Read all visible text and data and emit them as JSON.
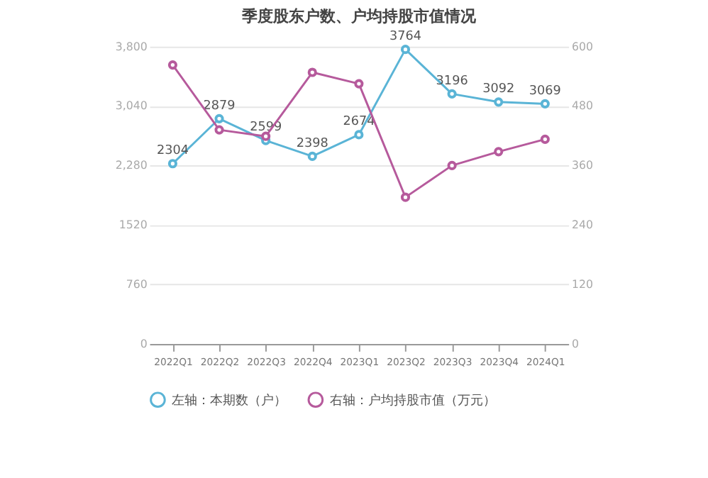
{
  "chart_data": {
    "type": "line",
    "title": "季度股东户数、户均持股市值情况",
    "categories": [
      "2022Q1",
      "2022Q2",
      "2022Q3",
      "2022Q4",
      "2023Q1",
      "2023Q2",
      "2023Q3",
      "2023Q4",
      "2024Q1"
    ],
    "series": [
      {
        "name": "左轴：本期数（户）",
        "color": "#5ab4d6",
        "values": [
          2304,
          2879,
          2599,
          2398,
          2674,
          3764,
          3196,
          3092,
          3069
        ],
        "value_labels": [
          "2304",
          "2879",
          "2599",
          "2398",
          "2674",
          "3764",
          "3196",
          "3092",
          "3069"
        ]
      },
      {
        "name": "右轴：户均持股市值（万元）",
        "color": "#b65a9c",
        "axis": "y2",
        "values": [
          563,
          432,
          419,
          548,
          525,
          296,
          360,
          388,
          413
        ]
      }
    ],
    "ylim": [
      0,
      3800
    ],
    "yticks": [
      0,
      760,
      1520,
      {
        "value": 2280,
        "label": "2,280"
      },
      {
        "value": 3040,
        "label": "3,040"
      },
      {
        "value": 3800,
        "label": "3,800"
      }
    ],
    "y2lim": [
      0,
      600
    ],
    "y2ticks": [
      0,
      120,
      240,
      360,
      480,
      600
    ],
    "grid": "y",
    "legend": "bottom",
    "marker": "circle",
    "line_style": "solid"
  }
}
